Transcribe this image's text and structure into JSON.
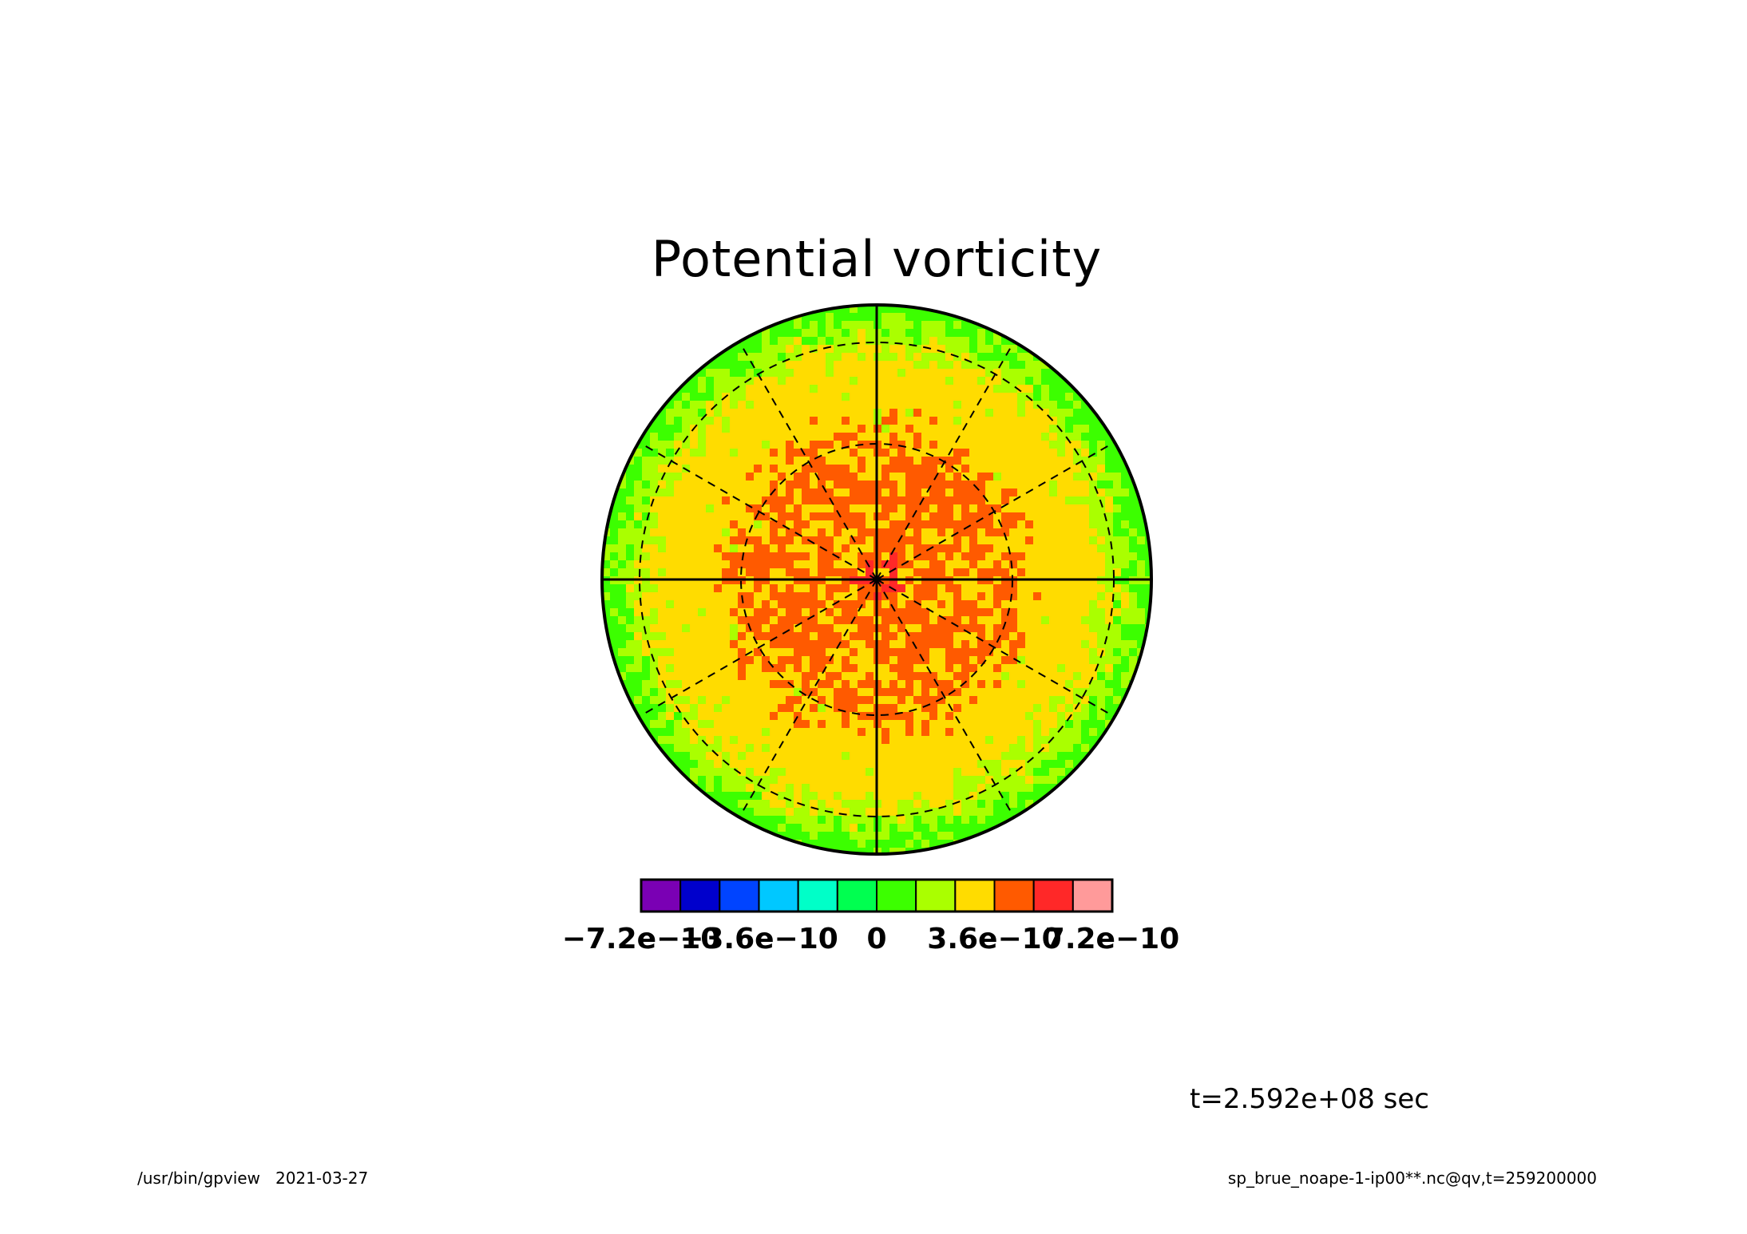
{
  "chart_data": {
    "type": "heatmap",
    "projection": "polar-stereographic",
    "title": "Potential vorticity",
    "variable": "qv",
    "units_shown": "",
    "colorbar": {
      "levels": [
        -7.2e-10,
        -6e-10,
        -4.8e-10,
        -3.6e-10,
        -2.4e-10,
        -1.2e-10,
        0,
        1.2e-10,
        2.4e-10,
        3.6e-10,
        4.8e-10,
        6e-10,
        7.2e-10
      ],
      "colors": [
        "#7a00b4",
        "#0000cc",
        "#0044ff",
        "#00c8ff",
        "#00ffc8",
        "#00ff50",
        "#3cff00",
        "#aaff00",
        "#ffdc00",
        "#ff5a00",
        "#ff2828",
        "#ff9a9a"
      ],
      "tick_labels": [
        "-7.2e-10",
        "-3.6e-10",
        "0",
        "3.6e-10",
        "7.2e-10"
      ]
    },
    "field_description": {
      "edge_level_bin": [
        0,
        1.2e-10
      ],
      "outer_ring_bin": [
        1.2e-10,
        2.4e-10
      ],
      "mid_ring_bin": [
        2.4e-10,
        3.6e-10
      ],
      "core_bin": [
        3.6e-10,
        4.8e-10
      ],
      "pole_max_bin": [
        4.8e-10,
        6e-10
      ]
    },
    "grid": {
      "meridian_spacing_deg": 30,
      "latitude_circles": 2,
      "solid_axes": true
    },
    "time_label": "t=2.592e+08 sec",
    "footer_left": "/usr/bin/gpview   2021-03-27",
    "footer_right": "sp_brue_noape-1-ip00**.nc@qv,t=259200000"
  }
}
